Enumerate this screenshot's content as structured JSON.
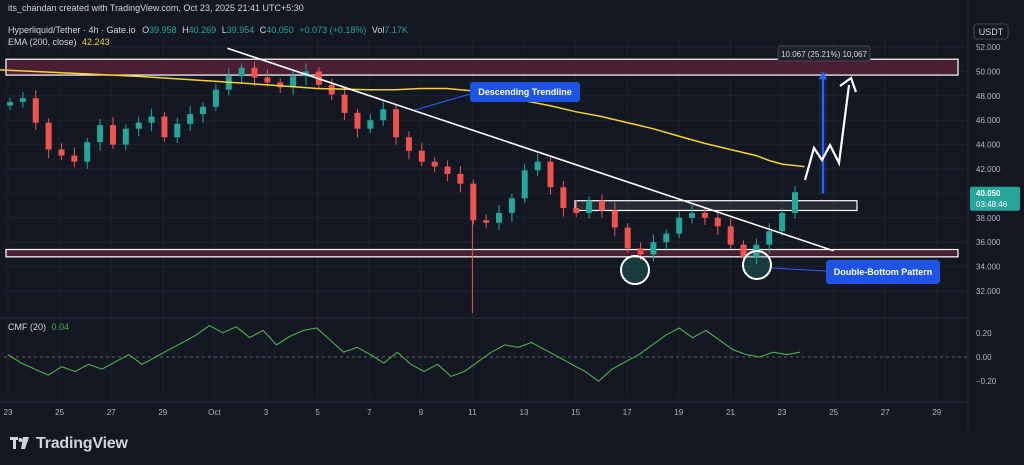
{
  "header": {
    "credit": "its_chandan created with TradingView.com, Oct 23, 2025 21:41 UTC+5:30",
    "symbol": "Hyperliquid/Tether · 4h · Gate.io",
    "o_label": "O",
    "o": "39.958",
    "h_label": "H",
    "h": "40.269",
    "l_label": "L",
    "l": "39.954",
    "c_label": "C",
    "c": "40.050",
    "change": "+0.073 (+0.18%)",
    "vol_label": "Vol",
    "vol": "7.17K",
    "ema_label": "EMA (200, close)",
    "ema_value": "42.243"
  },
  "currency": "USDT",
  "price_badge": {
    "price": "40.050",
    "countdown": "03:48:46"
  },
  "annotations": {
    "measure": "10.067 (25.21%) 10,067",
    "trendline": "Descending Trendline",
    "double_bottom": "Double-Bottom Pattern"
  },
  "cmf": {
    "label": "CMF (20)",
    "value": "0.04"
  },
  "footer": {
    "brand": "TradingView"
  },
  "colors": {
    "background": "#131722",
    "up": "#26a69a",
    "down": "#ef5350",
    "ema": "#f5d130",
    "cmf": "#4caf50",
    "zone": "#4a1f33",
    "label_bg": "#1e53e5",
    "measure": "#2962ff",
    "grid": "#1e222d"
  },
  "chart_data": {
    "type": "candlestick",
    "yaxis": {
      "ticks": [
        52,
        50,
        48,
        46,
        44,
        42,
        40,
        38,
        36,
        34,
        32
      ],
      "tick_labels": [
        "52.000",
        "50.000",
        "48.000",
        "46.000",
        "44.000",
        "42.000",
        "40.000",
        "38.000",
        "36.000",
        "34.000",
        "32.000"
      ]
    },
    "xaxis": {
      "dates": [
        "2025-09-23",
        "2025-09-25",
        "2025-09-27",
        "2025-09-29",
        "2025-10-01",
        "2025-10-03",
        "2025-10-05",
        "2025-10-07",
        "2025-10-09",
        "2025-10-11",
        "2025-10-13",
        "2025-10-15",
        "2025-10-17",
        "2025-10-19",
        "2025-10-21",
        "2025-10-23",
        "2025-10-25",
        "2025-10-27",
        "2025-10-29"
      ],
      "tick_labels": [
        "23",
        "25",
        "27",
        "29",
        "Oct",
        "3",
        "5",
        "7",
        "9",
        "11",
        "13",
        "15",
        "17",
        "19",
        "21",
        "23",
        "25",
        "27",
        "29"
      ]
    },
    "price_closes": [
      47.5,
      47.8,
      45.8,
      43.6,
      43.1,
      42.6,
      44.2,
      45.6,
      44.0,
      45.3,
      45.8,
      46.3,
      44.6,
      45.7,
      46.5,
      47.1,
      48.5,
      49.6,
      50.3,
      49.5,
      49.1,
      48.7,
      49.6,
      50.0,
      48.9,
      48.1,
      46.6,
      45.3,
      46.0,
      46.9,
      44.6,
      43.5,
      42.6,
      42.2,
      41.6,
      40.8,
      37.8,
      37.6,
      38.4,
      39.6,
      41.9,
      42.6,
      40.5,
      38.8,
      38.4,
      39.4,
      38.6,
      37.2,
      35.5,
      35.0,
      36.0,
      36.7,
      38.0,
      38.4,
      38.0,
      37.3,
      35.8,
      34.8,
      35.8,
      36.9,
      38.4,
      40.1
    ],
    "ema_200": [
      50.2,
      49.9,
      49.6,
      49.2,
      48.9,
      48.6,
      48.5,
      48.5,
      48.6,
      48.6,
      48.4,
      48.0,
      47.6,
      47.2,
      46.7,
      46.3,
      45.8,
      45.3,
      44.7,
      44.1,
      43.6,
      43.1,
      42.7,
      42.4,
      42.2
    ],
    "ema_200_x": [
      "2025-09-22",
      "2025-09-25",
      "2025-09-28",
      "2025-10-01",
      "2025-10-03",
      "2025-10-05",
      "2025-10-07",
      "2025-10-08",
      "2025-10-09",
      "2025-10-10",
      "2025-10-11",
      "2025-10-12",
      "2025-10-13",
      "2025-10-14",
      "2025-10-15",
      "2025-10-16",
      "2025-10-17",
      "2025-10-18",
      "2025-10-19",
      "2025-10-20",
      "2025-10-21",
      "2025-10-22",
      "2025-10-22T12:00",
      "2025-10-23",
      "2025-10-23T21:00"
    ],
    "resistance_zone": [
      49.7,
      51.0
    ],
    "support_zone": [
      34.8,
      35.4
    ],
    "neckline_box": [
      38.6,
      39.4
    ],
    "trendline": {
      "from": [
        "2025-10-01T12:00",
        51.9
      ],
      "to": [
        "2025-10-25T00:00",
        35.3
      ]
    },
    "projection": {
      "from_price": 40.0,
      "to_price": 50.0,
      "gain": 10.067,
      "gain_pct": 25.21
    },
    "cmf_axis": {
      "ticks": [
        0.2,
        0.0,
        -0.2
      ],
      "tick_labels": [
        "0.20",
        "0.00",
        "−0.20"
      ]
    },
    "cmf_values": [
      0.02,
      -0.05,
      -0.1,
      -0.15,
      -0.08,
      -0.12,
      -0.06,
      -0.1,
      -0.04,
      0.02,
      -0.06,
      0.0,
      0.06,
      0.12,
      0.18,
      0.26,
      0.2,
      0.25,
      0.16,
      0.22,
      0.1,
      0.17,
      0.22,
      0.24,
      0.14,
      0.04,
      0.08,
      0.02,
      -0.05,
      0.04,
      -0.06,
      -0.12,
      -0.06,
      -0.16,
      -0.12,
      -0.04,
      0.04,
      0.1,
      0.08,
      0.12,
      0.06,
      0.0,
      -0.06,
      -0.12,
      -0.2,
      -0.1,
      -0.04,
      0.02,
      0.1,
      0.18,
      0.24,
      0.16,
      0.22,
      0.14,
      0.06,
      0.02,
      0.0,
      0.04,
      0.02,
      0.04
    ]
  }
}
